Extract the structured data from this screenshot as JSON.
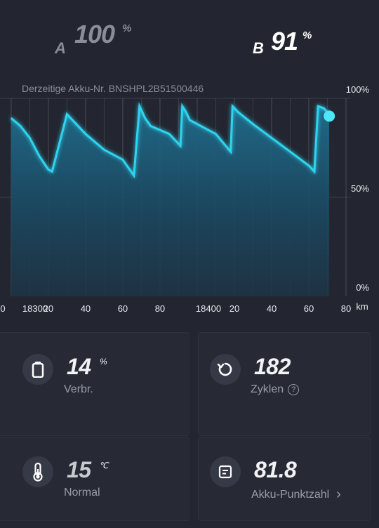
{
  "batteries": {
    "a": {
      "letter": "A",
      "value": "100",
      "unit": "%"
    },
    "b": {
      "letter": "B",
      "value": "91",
      "unit": "%"
    }
  },
  "akku_label": "Derzeitige Akku-Nr. BNSHPL2B51500446",
  "chart_data": {
    "type": "area",
    "x_unit": "km",
    "x_tick_labels": [
      "0",
      "18300",
      "20",
      "40",
      "60",
      "80",
      "18400",
      "20",
      "40",
      "60",
      "80"
    ],
    "y_tick_labels": [
      "100%",
      "50%",
      "0%"
    ],
    "ylim": [
      0,
      100
    ],
    "xlim": [
      18300,
      18480
    ],
    "series": [
      {
        "x": [
          18300,
          18305,
          18310,
          18315,
          18320,
          18322,
          18330,
          18340,
          18350,
          18360,
          18366,
          18369,
          18372,
          18375,
          18380,
          18385,
          18391,
          18392,
          18394,
          18396,
          18400,
          18410,
          18418,
          18419,
          18422,
          18430,
          18440,
          18450,
          18460,
          18463,
          18465,
          18468,
          18470,
          18471
        ],
        "y": [
          90,
          86,
          80,
          71,
          64,
          63,
          92,
          82,
          74,
          69,
          61,
          96,
          90,
          86,
          84,
          82,
          76,
          96,
          93,
          89,
          87,
          82,
          73,
          96,
          93,
          87,
          80,
          73,
          66,
          63,
          96,
          95,
          93,
          91
        ]
      }
    ],
    "colors": {
      "line": "#2fd3ee",
      "fill": "#1c5672",
      "marker": "#4ee6f7"
    },
    "grid": true
  },
  "stats": {
    "consumption": {
      "icon": "battery-icon",
      "value": "14",
      "unit": "%",
      "label": "Verbr."
    },
    "cycles": {
      "icon": "refresh-icon",
      "value": "182",
      "label": "Zyklen",
      "help": "?"
    },
    "temperature": {
      "icon": "thermometer-icon",
      "value": "15",
      "unit": "℃",
      "label": "Normal"
    },
    "score": {
      "icon": "document-icon",
      "value": "81.8",
      "label": "Akku-Punktzahl",
      "chevron": "›"
    }
  }
}
